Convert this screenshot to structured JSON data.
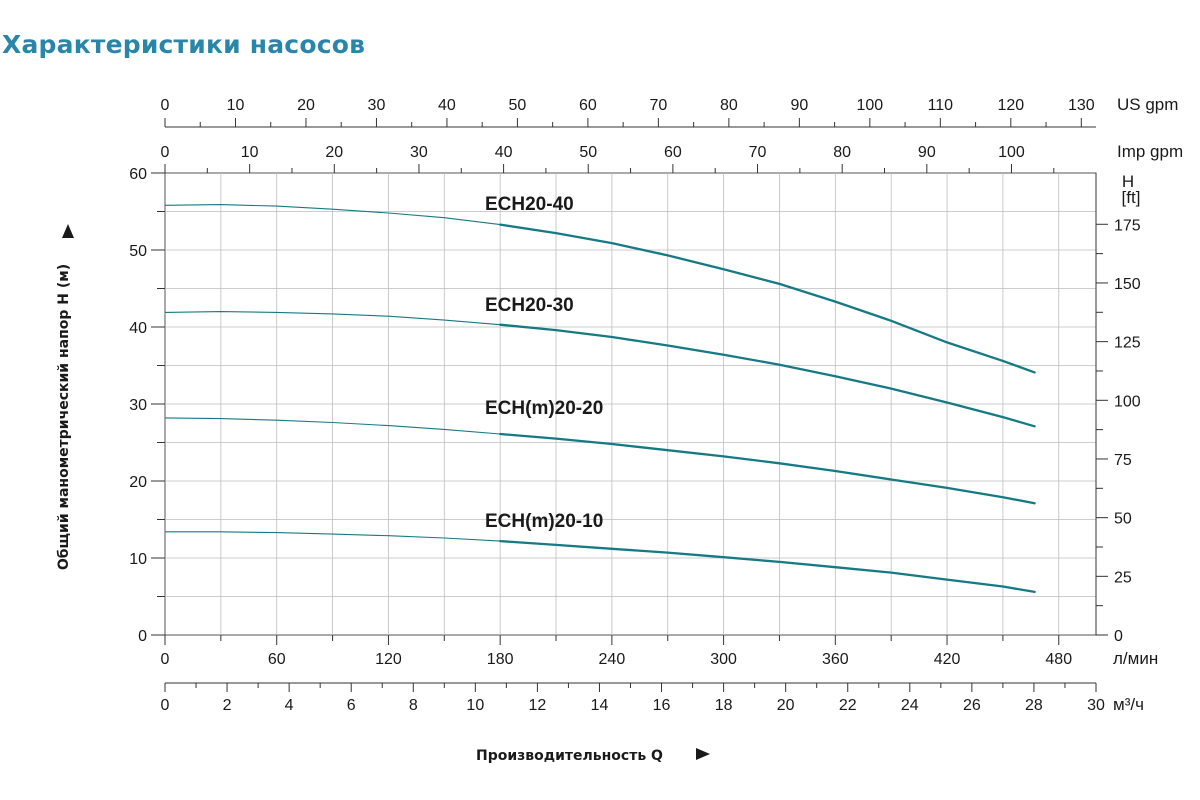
{
  "title": "Характеристики насосов",
  "chart_data": {
    "type": "line",
    "ylabel": "Общий манометрический напор H (м)",
    "xlabel": "Производительность Q",
    "ylim": [
      0,
      60
    ],
    "y_ticks": [
      0,
      10,
      20,
      30,
      40,
      50,
      60
    ],
    "y_unit": "",
    "right_axis": {
      "unit_line1": "H",
      "unit_line2": "[ft]",
      "ticks": [
        0,
        25,
        50,
        75,
        100,
        125,
        150,
        175
      ]
    },
    "x_axes": [
      {
        "unit": "л/мин",
        "range": [
          0,
          500
        ],
        "ticks": [
          0,
          60,
          120,
          180,
          240,
          300,
          360,
          420,
          480
        ]
      },
      {
        "unit": "м³/ч",
        "range": [
          0,
          30
        ],
        "ticks": [
          0,
          2,
          4,
          6,
          8,
          10,
          12,
          14,
          16,
          18,
          20,
          22,
          24,
          26,
          28,
          30
        ]
      },
      {
        "unit": "US gpm",
        "range": [
          0,
          132
        ],
        "ticks": [
          0,
          10,
          20,
          30,
          40,
          50,
          60,
          70,
          80,
          90,
          100,
          110,
          120,
          130
        ]
      },
      {
        "unit": "Imp gpm",
        "range": [
          0,
          110
        ],
        "ticks": [
          0,
          10,
          20,
          30,
          40,
          50,
          60,
          70,
          80,
          90,
          100
        ]
      }
    ],
    "grid": true,
    "series": [
      {
        "name": "ECH20-40",
        "x_lpm": [
          0,
          30,
          60,
          90,
          120,
          150,
          180,
          210,
          240,
          270,
          300,
          330,
          360,
          390,
          420,
          450,
          467
        ],
        "y": [
          55.8,
          55.9,
          55.7,
          55.3,
          54.8,
          54.2,
          53.3,
          52.2,
          50.9,
          49.3,
          47.5,
          45.6,
          43.3,
          40.8,
          38.0,
          35.6,
          34.1
        ]
      },
      {
        "name": "ECH20-30",
        "x_lpm": [
          0,
          30,
          60,
          90,
          120,
          150,
          180,
          210,
          240,
          270,
          300,
          330,
          360,
          390,
          420,
          450,
          467
        ],
        "y": [
          41.9,
          42.0,
          41.9,
          41.7,
          41.4,
          40.9,
          40.3,
          39.6,
          38.7,
          37.6,
          36.4,
          35.1,
          33.6,
          32.0,
          30.2,
          28.3,
          27.1
        ]
      },
      {
        "name": "ECH(m)20-20",
        "x_lpm": [
          0,
          30,
          60,
          90,
          120,
          150,
          180,
          210,
          240,
          270,
          300,
          330,
          360,
          390,
          420,
          450,
          467
        ],
        "y": [
          28.2,
          28.1,
          27.9,
          27.6,
          27.2,
          26.7,
          26.1,
          25.5,
          24.8,
          24.0,
          23.2,
          22.3,
          21.3,
          20.2,
          19.1,
          17.9,
          17.1
        ]
      },
      {
        "name": "ECH(m)20-10",
        "x_lpm": [
          0,
          30,
          60,
          90,
          120,
          150,
          180,
          210,
          240,
          270,
          300,
          330,
          360,
          390,
          420,
          450,
          467
        ],
        "y": [
          13.4,
          13.4,
          13.3,
          13.1,
          12.9,
          12.6,
          12.2,
          11.7,
          11.2,
          10.7,
          10.1,
          9.5,
          8.8,
          8.1,
          7.2,
          6.3,
          5.6
        ]
      }
    ],
    "line_color": "#167a85"
  }
}
